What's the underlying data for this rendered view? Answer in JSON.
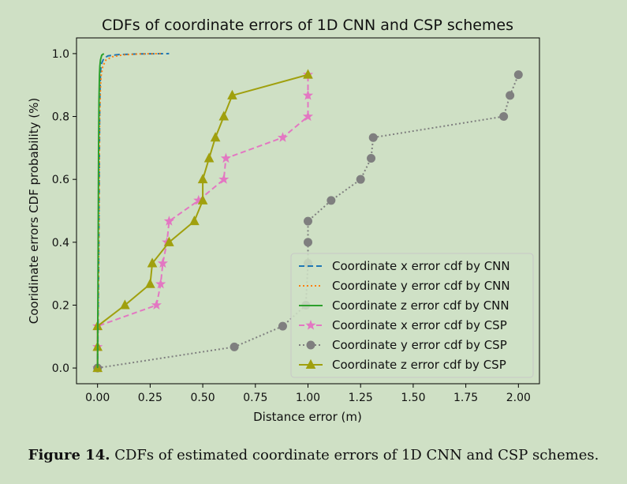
{
  "caption": {
    "label": "Figure 14.",
    "text": "CDFs of estimated coordinate errors of 1D CNN and CSP schemes."
  },
  "chart_data": {
    "type": "line",
    "title": "CDFs of coordinate errors of 1D CNN and CSP schemes",
    "xlabel": "Distance error (m)",
    "ylabel": "Cooridinate errors CDF probability (%)",
    "xlim": [
      -0.1,
      2.1
    ],
    "ylim": [
      -0.05,
      1.05
    ],
    "xticks": [
      0.0,
      0.25,
      0.5,
      0.75,
      1.0,
      1.25,
      1.5,
      1.75,
      2.0
    ],
    "xtick_labels": [
      "0.00",
      "0.25",
      "0.50",
      "0.75",
      "1.00",
      "1.25",
      "1.50",
      "1.75",
      "2.00"
    ],
    "yticks": [
      0.0,
      0.2,
      0.4,
      0.6,
      0.8,
      1.0
    ],
    "ytick_labels": [
      "0.0",
      "0.2",
      "0.4",
      "0.6",
      "0.8",
      "1.0"
    ],
    "grid": false,
    "legend_position": "lower-right",
    "series": [
      {
        "name": "Coordinate x error cdf by CNN",
        "color": "#1f77b4",
        "linestyle": "dashed",
        "marker": "none",
        "x": [
          0.0,
          0.005,
          0.008,
          0.01,
          0.012,
          0.015,
          0.02,
          0.03,
          0.05,
          0.1,
          0.2,
          0.34
        ],
        "y": [
          0.0,
          0.3,
          0.6,
          0.8,
          0.9,
          0.95,
          0.97,
          0.985,
          0.993,
          0.997,
          0.999,
          1.0
        ]
      },
      {
        "name": "Coordinate y error cdf by CNN",
        "color": "#ff7f0e",
        "linestyle": "dotted",
        "marker": "none",
        "x": [
          0.0,
          0.005,
          0.008,
          0.01,
          0.013,
          0.017,
          0.025,
          0.04,
          0.07,
          0.12,
          0.2,
          0.3
        ],
        "y": [
          0.0,
          0.3,
          0.6,
          0.8,
          0.88,
          0.93,
          0.96,
          0.98,
          0.99,
          0.996,
          0.999,
          1.0
        ]
      },
      {
        "name": "Coordinate z error cdf by CNN",
        "color": "#2ca02c",
        "linestyle": "solid",
        "marker": "none",
        "x": [
          0.0,
          0.003,
          0.005,
          0.007,
          0.009,
          0.011,
          0.014,
          0.02,
          0.03
        ],
        "y": [
          0.0,
          0.4,
          0.7,
          0.85,
          0.93,
          0.96,
          0.98,
          0.995,
          1.0
        ]
      },
      {
        "name": "Coordinate x error cdf by CSP",
        "color": "#e377c2",
        "linestyle": "dashed",
        "marker": "star",
        "x": [
          0.0,
          0.0,
          0.0,
          0.28,
          0.3,
          0.31,
          0.33,
          0.34,
          0.48,
          0.6,
          0.61,
          0.88,
          1.0,
          1.0,
          1.0
        ],
        "y": [
          0.0,
          0.067,
          0.133,
          0.2,
          0.267,
          0.333,
          0.4,
          0.467,
          0.533,
          0.6,
          0.667,
          0.733,
          0.8,
          0.867,
          0.933
        ]
      },
      {
        "name": "Coordinate y error cdf by CSP",
        "color": "#7f7f7f",
        "linestyle": "dotted",
        "marker": "circle",
        "x": [
          0.0,
          0.65,
          0.88,
          0.99,
          1.0,
          1.0,
          1.0,
          1.11,
          1.25,
          1.3,
          1.31,
          1.93,
          1.96,
          2.0
        ],
        "y": [
          0.0,
          0.067,
          0.133,
          0.2,
          0.333,
          0.4,
          0.467,
          0.533,
          0.6,
          0.667,
          0.733,
          0.8,
          0.867,
          0.933
        ]
      },
      {
        "name": "Coordinate z error cdf by CSP",
        "color": "#a0a00e",
        "linestyle": "solid",
        "marker": "triangle",
        "x": [
          0.0,
          0.0,
          0.0,
          0.13,
          0.25,
          0.26,
          0.34,
          0.46,
          0.5,
          0.5,
          0.53,
          0.56,
          0.6,
          0.64,
          1.0
        ],
        "y": [
          0.0,
          0.067,
          0.133,
          0.2,
          0.267,
          0.333,
          0.4,
          0.467,
          0.533,
          0.6,
          0.667,
          0.733,
          0.8,
          0.867,
          0.933
        ]
      }
    ]
  }
}
